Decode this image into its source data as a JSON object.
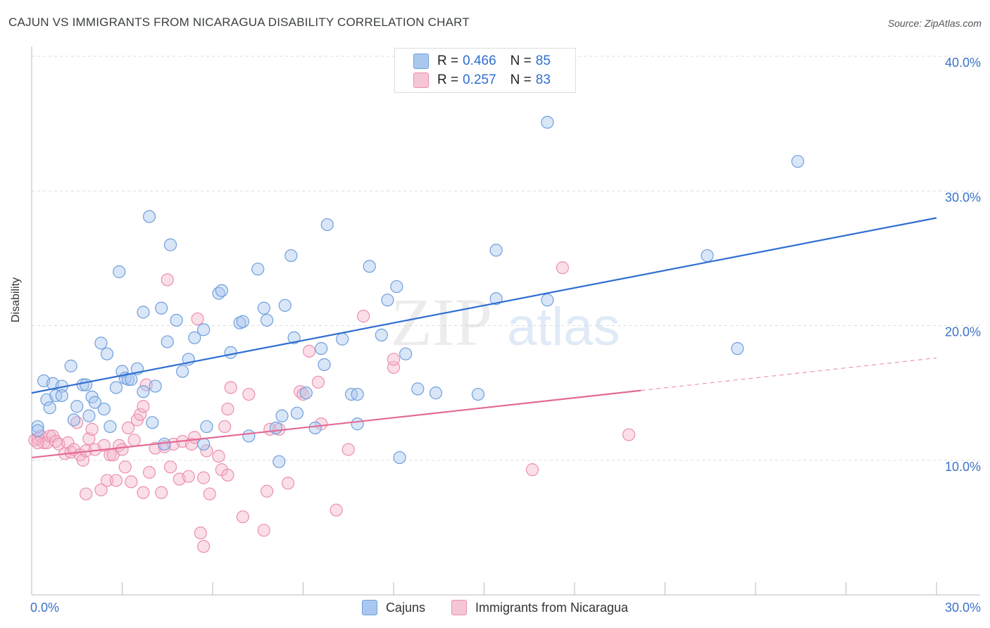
{
  "header": {
    "title": "CAJUN VS IMMIGRANTS FROM NICARAGUA DISABILITY CORRELATION CHART",
    "source": "Source: ZipAtlas.com"
  },
  "legend_top": [
    {
      "r_label": "R =",
      "r_value": "0.466",
      "n_label": "N =",
      "n_value": "85"
    },
    {
      "r_label": "R =",
      "r_value": "0.257",
      "n_label": "N =",
      "n_value": "83"
    }
  ],
  "legend_bottom": [
    {
      "label": "Cajuns"
    },
    {
      "label": "Immigrants from Nicaragua"
    }
  ],
  "watermark": {
    "zip": "ZIP",
    "atlas": "atlas"
  },
  "colors": {
    "blue_fill": "#aac8ef",
    "blue_stroke": "#6f9fdc",
    "blue_line": "#2f6fd0",
    "pink_fill": "#f5b8cc",
    "pink_stroke": "#ec8fae",
    "pink_line": "#e46a95",
    "tick_label": "#3b73c8",
    "grid": "#dddddd"
  },
  "chart_data": {
    "type": "scatter",
    "title": "CAJUN VS IMMIGRANTS FROM NICARAGUA DISABILITY CORRELATION CHART",
    "xlabel": "",
    "ylabel": "Disability",
    "xlim": [
      0,
      30
    ],
    "ylim": [
      0,
      40
    ],
    "x_tick_labels": [
      "0.0%",
      "30.0%"
    ],
    "y_ticks": [
      10,
      20,
      30,
      40
    ],
    "y_tick_labels": [
      "10.0%",
      "20.0%",
      "30.0%",
      "40.0%"
    ],
    "grid": true,
    "legend_position": "top-center",
    "series": [
      {
        "name": "Cajuns",
        "r": 0.466,
        "n": 85,
        "trend": {
          "x0": 0,
          "y0": 15.0,
          "x1": 30,
          "y1": 28.0,
          "solid_until": 30
        },
        "points": [
          [
            0.2,
            12.5
          ],
          [
            0.2,
            12.2
          ],
          [
            0.4,
            15.9
          ],
          [
            0.5,
            14.5
          ],
          [
            0.6,
            13.9
          ],
          [
            0.7,
            15.7
          ],
          [
            0.8,
            14.8
          ],
          [
            1.0,
            15.5
          ],
          [
            1.0,
            14.8
          ],
          [
            1.3,
            17.0
          ],
          [
            1.4,
            13.0
          ],
          [
            1.5,
            14.0
          ],
          [
            1.7,
            15.6
          ],
          [
            1.8,
            15.6
          ],
          [
            1.9,
            13.3
          ],
          [
            2.0,
            14.7
          ],
          [
            2.1,
            14.3
          ],
          [
            2.3,
            18.7
          ],
          [
            2.4,
            13.8
          ],
          [
            2.5,
            17.9
          ],
          [
            2.6,
            12.5
          ],
          [
            2.8,
            15.4
          ],
          [
            2.9,
            24.0
          ],
          [
            3.0,
            16.6
          ],
          [
            3.1,
            16.1
          ],
          [
            3.2,
            16.0
          ],
          [
            3.3,
            16.0
          ],
          [
            3.5,
            16.8
          ],
          [
            3.7,
            21.0
          ],
          [
            3.7,
            15.1
          ],
          [
            3.9,
            28.1
          ],
          [
            4.0,
            12.8
          ],
          [
            4.1,
            15.5
          ],
          [
            4.3,
            21.3
          ],
          [
            4.4,
            11.2
          ],
          [
            4.5,
            18.8
          ],
          [
            4.6,
            26.0
          ],
          [
            4.8,
            20.4
          ],
          [
            5.0,
            16.6
          ],
          [
            5.2,
            17.5
          ],
          [
            5.4,
            19.1
          ],
          [
            5.7,
            19.7
          ],
          [
            5.8,
            12.5
          ],
          [
            5.7,
            11.2
          ],
          [
            6.2,
            22.4
          ],
          [
            6.3,
            22.6
          ],
          [
            6.6,
            18.0
          ],
          [
            6.9,
            20.2
          ],
          [
            7.0,
            20.3
          ],
          [
            7.2,
            11.8
          ],
          [
            7.5,
            24.2
          ],
          [
            7.7,
            21.3
          ],
          [
            7.8,
            20.4
          ],
          [
            8.1,
            12.4
          ],
          [
            8.3,
            13.3
          ],
          [
            8.4,
            21.5
          ],
          [
            8.6,
            25.2
          ],
          [
            8.7,
            19.1
          ],
          [
            8.8,
            13.5
          ],
          [
            9.1,
            15.0
          ],
          [
            9.4,
            12.4
          ],
          [
            9.6,
            18.3
          ],
          [
            9.7,
            17.1
          ],
          [
            9.8,
            27.5
          ],
          [
            10.3,
            19.0
          ],
          [
            10.6,
            14.9
          ],
          [
            10.8,
            14.9
          ],
          [
            10.8,
            12.7
          ],
          [
            11.2,
            24.4
          ],
          [
            11.6,
            19.3
          ],
          [
            11.8,
            21.9
          ],
          [
            12.1,
            22.9
          ],
          [
            12.2,
            10.2
          ],
          [
            12.4,
            17.9
          ],
          [
            12.8,
            15.3
          ],
          [
            13.4,
            15.0
          ],
          [
            15.4,
            25.6
          ],
          [
            15.4,
            22.0
          ],
          [
            17.1,
            21.9
          ],
          [
            17.1,
            35.1
          ],
          [
            22.4,
            25.2
          ],
          [
            23.4,
            18.3
          ],
          [
            25.4,
            32.2
          ],
          [
            8.2,
            9.9
          ],
          [
            14.8,
            14.9
          ]
        ]
      },
      {
        "name": "Immigrants from Nicaragua",
        "r": 0.257,
        "n": 83,
        "trend": {
          "x0": 0,
          "y0": 10.2,
          "x1": 30,
          "y1": 17.6,
          "solid_until": 20.2
        },
        "points": [
          [
            0.1,
            11.5
          ],
          [
            0.2,
            11.6
          ],
          [
            0.3,
            11.8
          ],
          [
            0.4,
            11.3
          ],
          [
            0.5,
            11.3
          ],
          [
            0.6,
            11.8
          ],
          [
            0.7,
            11.8
          ],
          [
            0.8,
            11.4
          ],
          [
            0.9,
            11.2
          ],
          [
            1.1,
            10.5
          ],
          [
            1.2,
            11.3
          ],
          [
            1.3,
            10.6
          ],
          [
            1.4,
            10.8
          ],
          [
            1.5,
            12.8
          ],
          [
            1.6,
            10.4
          ],
          [
            1.7,
            10.0
          ],
          [
            1.8,
            10.7
          ],
          [
            1.8,
            7.5
          ],
          [
            1.9,
            11.6
          ],
          [
            2.0,
            12.3
          ],
          [
            2.1,
            10.8
          ],
          [
            2.3,
            7.8
          ],
          [
            2.4,
            11.1
          ],
          [
            2.5,
            8.5
          ],
          [
            2.6,
            10.4
          ],
          [
            2.7,
            10.4
          ],
          [
            2.8,
            8.5
          ],
          [
            2.9,
            11.1
          ],
          [
            3.0,
            10.8
          ],
          [
            3.1,
            9.5
          ],
          [
            3.2,
            12.4
          ],
          [
            3.3,
            8.4
          ],
          [
            3.4,
            11.5
          ],
          [
            3.5,
            13.0
          ],
          [
            3.6,
            13.4
          ],
          [
            3.7,
            14.0
          ],
          [
            3.7,
            7.6
          ],
          [
            3.8,
            15.6
          ],
          [
            3.9,
            9.1
          ],
          [
            4.1,
            10.9
          ],
          [
            4.3,
            7.6
          ],
          [
            4.4,
            11.0
          ],
          [
            4.5,
            23.4
          ],
          [
            4.6,
            9.5
          ],
          [
            4.7,
            11.2
          ],
          [
            4.9,
            8.6
          ],
          [
            5.0,
            11.4
          ],
          [
            5.2,
            8.8
          ],
          [
            5.3,
            11.2
          ],
          [
            5.4,
            11.7
          ],
          [
            5.5,
            20.5
          ],
          [
            5.6,
            4.6
          ],
          [
            5.7,
            3.6
          ],
          [
            5.7,
            8.7
          ],
          [
            5.8,
            10.7
          ],
          [
            5.9,
            7.5
          ],
          [
            6.2,
            10.3
          ],
          [
            6.3,
            9.3
          ],
          [
            6.4,
            12.5
          ],
          [
            6.5,
            8.9
          ],
          [
            6.5,
            13.8
          ],
          [
            6.6,
            15.4
          ],
          [
            7.0,
            5.8
          ],
          [
            7.2,
            14.9
          ],
          [
            7.7,
            4.8
          ],
          [
            7.8,
            7.7
          ],
          [
            7.9,
            12.3
          ],
          [
            8.2,
            12.3
          ],
          [
            8.5,
            8.3
          ],
          [
            8.9,
            15.1
          ],
          [
            9.0,
            14.9
          ],
          [
            9.2,
            18.1
          ],
          [
            9.5,
            15.8
          ],
          [
            9.6,
            12.7
          ],
          [
            10.1,
            6.3
          ],
          [
            10.5,
            10.8
          ],
          [
            11.0,
            20.7
          ],
          [
            12.0,
            16.9
          ],
          [
            12.0,
            17.5
          ],
          [
            16.6,
            9.3
          ],
          [
            17.6,
            24.3
          ],
          [
            19.8,
            11.9
          ],
          [
            0.2,
            11.3
          ]
        ]
      }
    ]
  }
}
